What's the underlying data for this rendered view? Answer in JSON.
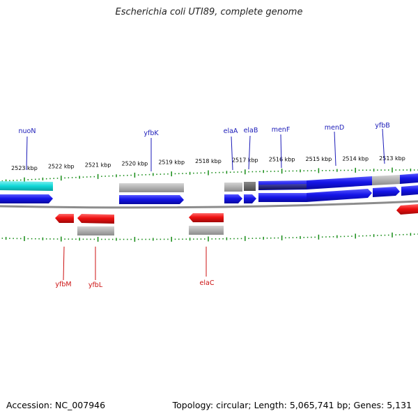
{
  "title": "Escherichia coli UTI89, complete genome",
  "footer": {
    "accession": "Accession: NC_007946",
    "summary": "Topology: circular; Length: 5,065,741 bp; Genes: 5,131"
  },
  "colors": {
    "forward_gene": "#1010e0",
    "reverse_gene": "#e01010",
    "cds_grey": "#a8a8a8",
    "dark_grey": "#606060",
    "navy": "#202080",
    "cyan": "#10d8d8",
    "tick": "#138a13",
    "label_forward": "#1a1ab8",
    "label_reverse": "#cc1010"
  },
  "ticks": [
    {
      "kbp": 2523,
      "label": "2523 kbp"
    },
    {
      "kbp": 2522,
      "label": "2522 kbp"
    },
    {
      "kbp": 2521,
      "label": "2521 kbp"
    },
    {
      "kbp": 2520,
      "label": "2520 kbp"
    },
    {
      "kbp": 2519,
      "label": "2519 kbp"
    },
    {
      "kbp": 2518,
      "label": "2518 kbp"
    },
    {
      "kbp": 2517,
      "label": "2517 kbp"
    },
    {
      "kbp": 2516,
      "label": "2516 kbp"
    },
    {
      "kbp": 2515,
      "label": "2515 kbp"
    },
    {
      "kbp": 2514,
      "label": "2514 kbp"
    },
    {
      "kbp": 2513,
      "label": "2513 kbp"
    }
  ],
  "forward_labels": [
    "nuoN",
    "yfbK",
    "elaA",
    "elaB",
    "menF",
    "menD",
    "yfbB"
  ],
  "reverse_labels": [
    "yfbM",
    "yfbL",
    "elaC"
  ]
}
